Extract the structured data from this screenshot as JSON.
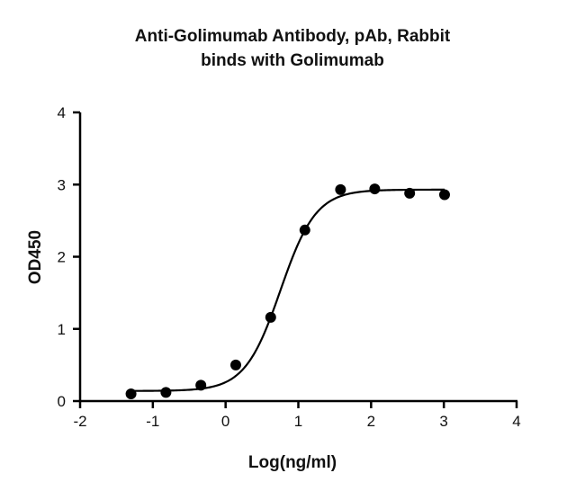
{
  "chart_data": {
    "type": "scatter",
    "title": [
      "Anti-Golimumab Antibody, pAb, Rabbit",
      "binds with Golimumab"
    ],
    "xlabel": "Log(ng/ml)",
    "ylabel": "OD450",
    "xlim": [
      -2,
      4
    ],
    "ylim": [
      0,
      4
    ],
    "xticks": [
      "-2",
      "-1",
      "0",
      "1",
      "2",
      "3",
      "4"
    ],
    "yticks": [
      "0",
      "1",
      "2",
      "3",
      "4"
    ],
    "grid": false,
    "legend": "none",
    "fit": "sigmoidal curve",
    "series": [
      {
        "x": [
          -1.3,
          -0.82,
          -0.34,
          0.14,
          0.62,
          1.09,
          1.58,
          2.05,
          2.53,
          3.01
        ],
        "y": [
          0.1,
          0.12,
          0.22,
          0.5,
          1.16,
          2.37,
          2.93,
          2.94,
          2.88,
          2.86
        ]
      }
    ],
    "colors": {
      "marker": "#000000",
      "line": "#000000"
    }
  }
}
